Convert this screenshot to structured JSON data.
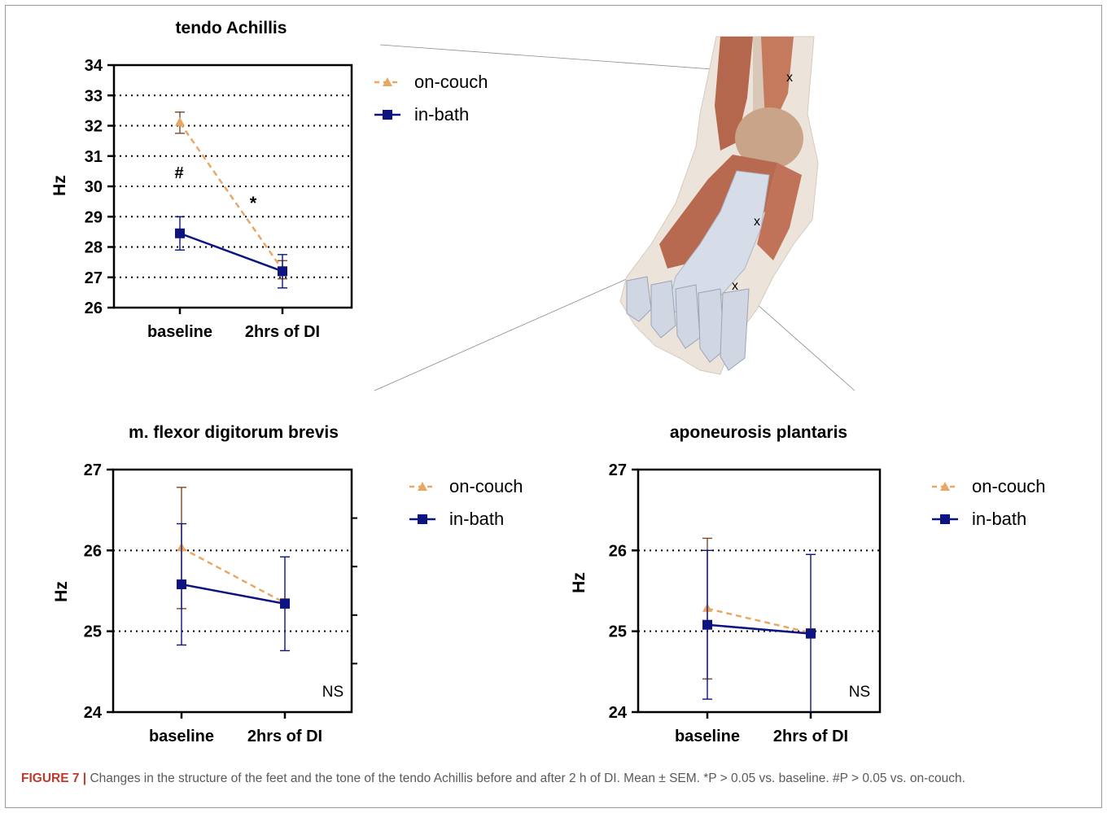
{
  "colors": {
    "on_couch": "#E8A864",
    "in_bath": "#0D1380",
    "grid": "#000000"
  },
  "legend": {
    "on_couch": "on-couch",
    "in_bath": "in-bath"
  },
  "caption": {
    "label": "FIGURE 7 |",
    "text": "Changes in the structure of the feet and the tone of the tendo Achillis before and after 2 h of DI. Mean ± SEM. *P > 0.05 vs. baseline. #P > 0.05 vs. on-couch."
  },
  "illustration": {
    "icon": "foot-anatomy-icon"
  },
  "chart_data": [
    {
      "type": "line",
      "title": "tendo Achillis",
      "xlabel": "",
      "ylabel": "Hz",
      "categories": [
        "baseline",
        "2hrs of DI"
      ],
      "ylim": [
        26,
        34
      ],
      "yticks": [
        26,
        27,
        28,
        29,
        30,
        31,
        32,
        33,
        34
      ],
      "grid_lines": [
        27,
        28,
        29,
        30,
        31,
        32,
        33
      ],
      "series": [
        {
          "name": "on-couch",
          "values": [
            32.1,
            27.25
          ],
          "err": [
            0.35,
            0.3
          ]
        },
        {
          "name": "in-bath",
          "values": [
            28.45,
            27.2
          ],
          "err": [
            0.55,
            0.55
          ]
        }
      ],
      "annotations": [
        "#",
        "*"
      ]
    },
    {
      "type": "line",
      "title": "m. flexor digitorum brevis",
      "xlabel": "",
      "ylabel": "Hz",
      "categories": [
        "baseline",
        "2hrs of DI"
      ],
      "ylim": [
        24,
        27
      ],
      "yticks": [
        24,
        25,
        26,
        27
      ],
      "grid_lines": [
        25,
        26
      ],
      "series": [
        {
          "name": "on-couch",
          "values": [
            26.03,
            25.35
          ],
          "err": [
            0.75,
            0.05
          ]
        },
        {
          "name": "in-bath",
          "values": [
            25.58,
            25.34
          ],
          "err": [
            0.75,
            0.58
          ]
        }
      ],
      "annotations": [
        "NS"
      ]
    },
    {
      "type": "line",
      "title": "aponeurosis plantaris",
      "xlabel": "",
      "ylabel": "Hz",
      "categories": [
        "baseline",
        "2hrs of DI"
      ],
      "ylim": [
        24,
        27
      ],
      "yticks": [
        24,
        25,
        26,
        27
      ],
      "grid_lines": [
        25,
        26
      ],
      "series": [
        {
          "name": "on-couch",
          "values": [
            25.28,
            24.98
          ],
          "err": [
            0.87,
            0.05
          ]
        },
        {
          "name": "in-bath",
          "values": [
            25.08,
            24.97
          ],
          "err": [
            0.92,
            0.98
          ]
        }
      ],
      "annotations": [
        "NS"
      ]
    }
  ]
}
